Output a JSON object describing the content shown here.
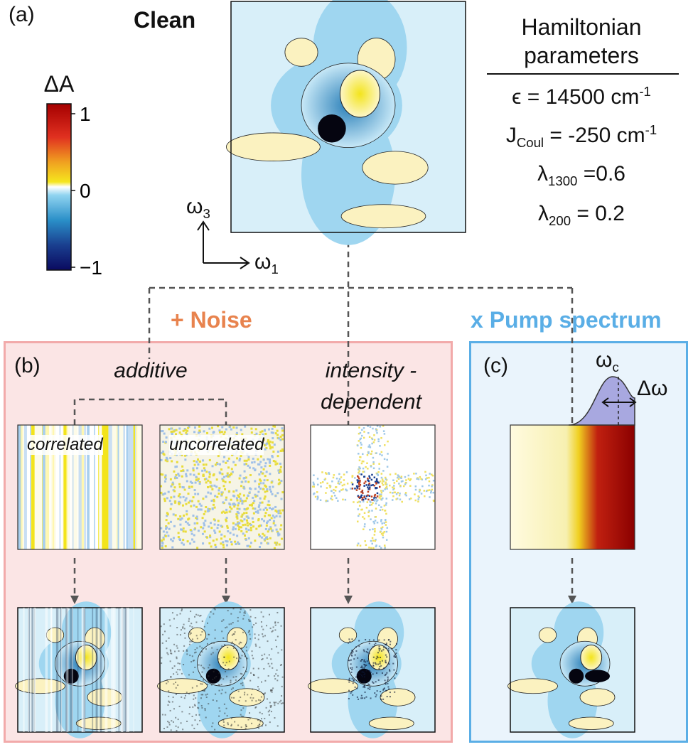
{
  "panel_a": {
    "label": "(a)",
    "title": "Clean",
    "colorbar": {
      "title": "ΔA",
      "lim": [
        -1,
        1
      ],
      "ticks": [
        1,
        0,
        {
          "value": -1,
          "label": "−1"
        }
      ]
    },
    "axes": {
      "y": {
        "symbol": "ω",
        "sub": "3"
      },
      "x": {
        "symbol": "ω",
        "sub": "1"
      }
    },
    "parameters": {
      "title": "Hamiltonian parameters",
      "rows": [
        {
          "text": "ϵ = 14500 cm",
          "sup": "-1"
        },
        {
          "text": "J",
          "sub": "Coul",
          "rest": " = -250 cm",
          "sup": "-1"
        },
        {
          "text": "λ",
          "sub": "1300",
          "rest": " =0.6"
        },
        {
          "text": "λ",
          "sub": "200",
          "rest": " = 0.2"
        }
      ]
    }
  },
  "panel_b": {
    "label": "(b)",
    "heading": "+ Noise",
    "additive": "additive",
    "intensity": "intensity - dependent",
    "correlated": "correlated",
    "uncorrelated": "uncorrelated"
  },
  "panel_c": {
    "label": "(c)",
    "heading": "x Pump spectrum",
    "center": {
      "symbol": "ω",
      "sub": "c"
    },
    "width": "Δω"
  }
}
